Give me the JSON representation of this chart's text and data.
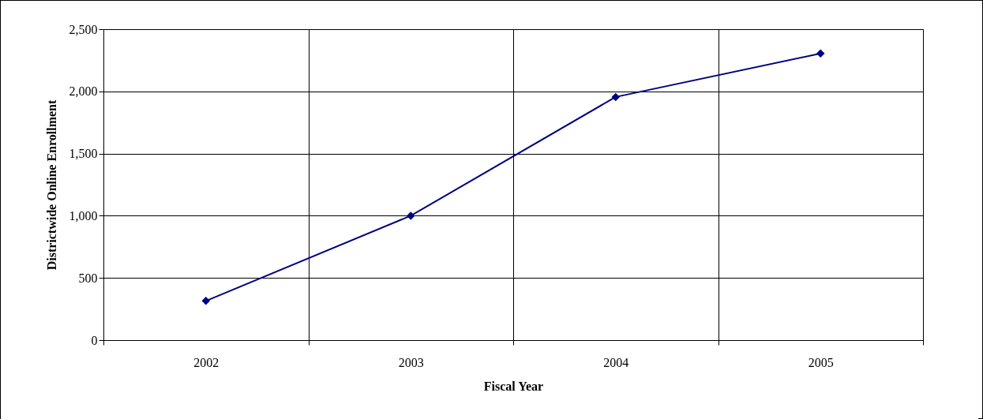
{
  "chart_data": {
    "type": "line",
    "xlabel": "Fiscal Year",
    "ylabel": "Districtwide Online Enrollment",
    "categories": [
      "2002",
      "2003",
      "2004",
      "2005"
    ],
    "series": [
      {
        "color": "#000080",
        "values": [
          315,
          1000,
          1955,
          2305
        ]
      }
    ],
    "ylim": [
      0,
      2500
    ],
    "yticks": [
      0,
      500,
      {
        "value": 1000,
        "label": "1,000"
      },
      {
        "value": 1500,
        "label": "1,500"
      },
      {
        "value": 2000,
        "label": "2,000"
      },
      {
        "value": 2500,
        "label": "2,500"
      }
    ],
    "grid": true,
    "marker": "diamond",
    "line_style": "solid"
  }
}
